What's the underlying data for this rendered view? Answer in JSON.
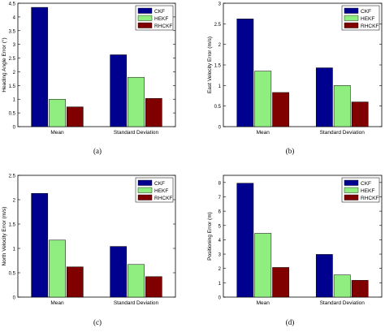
{
  "figure": {
    "panel_letters": [
      "(a)",
      "(b)",
      "(c)",
      "(d)"
    ]
  },
  "colors": {
    "CKF": "#00008f",
    "HEKF": "#90ee80",
    "RHCKF": "#800000"
  },
  "chart_data": [
    {
      "type": "bar",
      "categories": [
        "Mean",
        "Standard Deviation"
      ],
      "series": [
        {
          "name": "CKF",
          "values": [
            4.35,
            2.62
          ]
        },
        {
          "name": "HEKF",
          "values": [
            1.0,
            1.8
          ]
        },
        {
          "name": "RHCKF",
          "values": [
            0.72,
            1.03
          ]
        }
      ],
      "xlabel": "",
      "ylabel": "Heading Angle Error (°)",
      "ylim": [
        0,
        4.5
      ],
      "yticks": [
        0,
        0.5,
        1,
        1.5,
        2,
        2.5,
        3,
        3.5,
        4,
        4.5
      ],
      "legend": "top-right",
      "grid": false
    },
    {
      "type": "bar",
      "categories": [
        "Mean",
        "Standard Deviation"
      ],
      "series": [
        {
          "name": "CKF",
          "values": [
            2.62,
            1.43
          ]
        },
        {
          "name": "HEKF",
          "values": [
            1.35,
            1.0
          ]
        },
        {
          "name": "RHCKF",
          "values": [
            0.83,
            0.6
          ]
        }
      ],
      "xlabel": "",
      "ylabel": "East Velocity Error (m/s)",
      "ylim": [
        0,
        3
      ],
      "yticks": [
        0,
        0.5,
        1,
        1.5,
        2,
        2.5,
        3
      ],
      "legend": "top-right",
      "grid": false
    },
    {
      "type": "bar",
      "categories": [
        "Mean",
        "Standard Deviation"
      ],
      "series": [
        {
          "name": "CKF",
          "values": [
            2.13,
            1.04
          ]
        },
        {
          "name": "HEKF",
          "values": [
            1.17,
            0.67
          ]
        },
        {
          "name": "RHCKF",
          "values": [
            0.62,
            0.42
          ]
        }
      ],
      "xlabel": "",
      "ylabel": "North Velocity Error (m/s)",
      "ylim": [
        0,
        2.5
      ],
      "yticks": [
        0,
        0.5,
        1,
        1.5,
        2,
        2.5
      ],
      "legend": "top-right",
      "grid": false
    },
    {
      "type": "bar",
      "categories": [
        "Mean",
        "Standard Deviation"
      ],
      "series": [
        {
          "name": "CKF",
          "values": [
            7.95,
            2.98
          ]
        },
        {
          "name": "HEKF",
          "values": [
            4.45,
            1.55
          ]
        },
        {
          "name": "RHCKF",
          "values": [
            2.07,
            1.17
          ]
        }
      ],
      "xlabel": "",
      "ylabel": "Positioning Error (m)",
      "ylim": [
        0,
        8.5
      ],
      "yticks": [
        0,
        1,
        2,
        3,
        4,
        5,
        6,
        7,
        8
      ],
      "legend": "top-right",
      "grid": false
    }
  ]
}
